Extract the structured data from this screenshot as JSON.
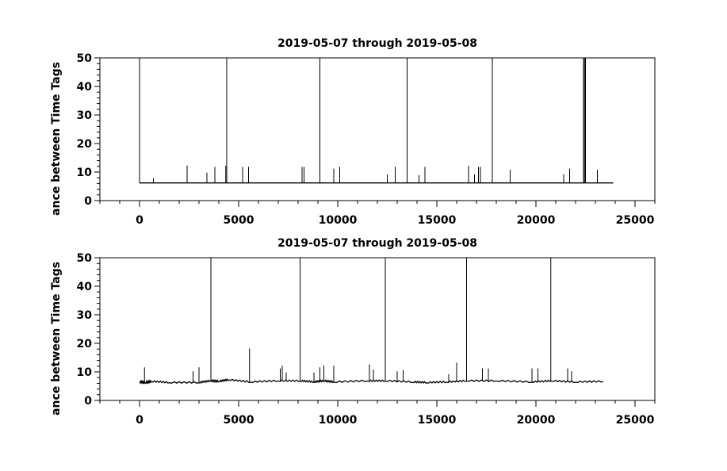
{
  "chart_data": [
    {
      "type": "line",
      "title": "2019-05-07 through 2019-05-08",
      "xlabel": "",
      "ylabel": "ance between Time Tags",
      "xlim": [
        -2000,
        26000
      ],
      "ylim": [
        0,
        50
      ],
      "x_ticks": [
        "0",
        "5000",
        "10000",
        "15000",
        "20000",
        "25000"
      ],
      "y_ticks": [
        "0",
        "10",
        "20",
        "30",
        "40",
        "50"
      ],
      "grid": false,
      "legend": "none",
      "baseline": {
        "x": [
          0,
          23900
        ],
        "y": 6.2
      },
      "spikes": [
        {
          "x": 0,
          "y": 50
        },
        {
          "x": 700,
          "y": 7.8
        },
        {
          "x": 2400,
          "y": 12.3
        },
        {
          "x": 3400,
          "y": 9.8
        },
        {
          "x": 3800,
          "y": 11.8
        },
        {
          "x": 4350,
          "y": 12.2
        },
        {
          "x": 4400,
          "y": 50
        },
        {
          "x": 5200,
          "y": 11.8
        },
        {
          "x": 5500,
          "y": 11.8
        },
        {
          "x": 8200,
          "y": 11.8
        },
        {
          "x": 8300,
          "y": 11.8
        },
        {
          "x": 9100,
          "y": 50
        },
        {
          "x": 9800,
          "y": 11.2
        },
        {
          "x": 10100,
          "y": 11.8
        },
        {
          "x": 12500,
          "y": 9.2
        },
        {
          "x": 12900,
          "y": 11.8
        },
        {
          "x": 13500,
          "y": 50
        },
        {
          "x": 14100,
          "y": 8.9
        },
        {
          "x": 14400,
          "y": 11.8
        },
        {
          "x": 16600,
          "y": 12.2
        },
        {
          "x": 16900,
          "y": 9.2
        },
        {
          "x": 17100,
          "y": 11.8
        },
        {
          "x": 17200,
          "y": 11.8
        },
        {
          "x": 17800,
          "y": 50
        },
        {
          "x": 18700,
          "y": 10.8
        },
        {
          "x": 21400,
          "y": 9.2
        },
        {
          "x": 21700,
          "y": 11.2
        },
        {
          "x": 22400,
          "y": 50
        },
        {
          "x": 22450,
          "y": 50
        },
        {
          "x": 22500,
          "y": 50
        },
        {
          "x": 23100,
          "y": 10.8
        }
      ]
    },
    {
      "type": "line",
      "title": "2019-05-07 through 2019-05-08",
      "xlabel": "",
      "ylabel": "ance between Time Tags",
      "xlim": [
        -2000,
        26000
      ],
      "ylim": [
        0,
        50
      ],
      "x_ticks": [
        "0",
        "5000",
        "10000",
        "15000",
        "20000",
        "25000"
      ],
      "y_ticks": [
        "0",
        "10",
        "20",
        "30",
        "40",
        "50"
      ],
      "grid": false,
      "legend": "none",
      "baseline": {
        "x": [
          0,
          300,
          600,
          1500,
          3000,
          3600,
          4000,
          4500,
          5600,
          7000,
          8100,
          8800,
          9300,
          9800,
          11500,
          12400,
          13800,
          14500,
          15500,
          16500,
          18000,
          19800,
          20800,
          22000,
          23400
        ],
        "y": [
          6.4,
          6.2,
          6.6,
          6.2,
          6.2,
          6.8,
          6.6,
          7.2,
          6.4,
          6.8,
          6.8,
          6.4,
          6.8,
          6.4,
          6.8,
          6.8,
          6.4,
          6.2,
          6.4,
          6.8,
          6.8,
          6.4,
          6.8,
          6.4,
          6.6
        ]
      },
      "spikes": [
        {
          "x": 250,
          "y": 11.6
        },
        {
          "x": 2700,
          "y": 10.2
        },
        {
          "x": 3000,
          "y": 11.6
        },
        {
          "x": 3600,
          "y": 50
        },
        {
          "x": 5550,
          "y": 18.2
        },
        {
          "x": 7100,
          "y": 11.2
        },
        {
          "x": 7200,
          "y": 12.2
        },
        {
          "x": 7400,
          "y": 9.8
        },
        {
          "x": 8100,
          "y": 50
        },
        {
          "x": 8800,
          "y": 9.8
        },
        {
          "x": 9100,
          "y": 11.6
        },
        {
          "x": 9300,
          "y": 12.2
        },
        {
          "x": 9800,
          "y": 12.2
        },
        {
          "x": 11600,
          "y": 12.6
        },
        {
          "x": 11800,
          "y": 10.8
        },
        {
          "x": 12400,
          "y": 50
        },
        {
          "x": 13000,
          "y": 10.2
        },
        {
          "x": 13300,
          "y": 10.6
        },
        {
          "x": 15600,
          "y": 9.2
        },
        {
          "x": 16000,
          "y": 13.2
        },
        {
          "x": 16500,
          "y": 50
        },
        {
          "x": 17300,
          "y": 11.2
        },
        {
          "x": 17600,
          "y": 11.2
        },
        {
          "x": 19800,
          "y": 11.2
        },
        {
          "x": 20100,
          "y": 11.2
        },
        {
          "x": 20750,
          "y": 50
        },
        {
          "x": 21600,
          "y": 11.2
        },
        {
          "x": 21800,
          "y": 10.2
        }
      ]
    }
  ]
}
